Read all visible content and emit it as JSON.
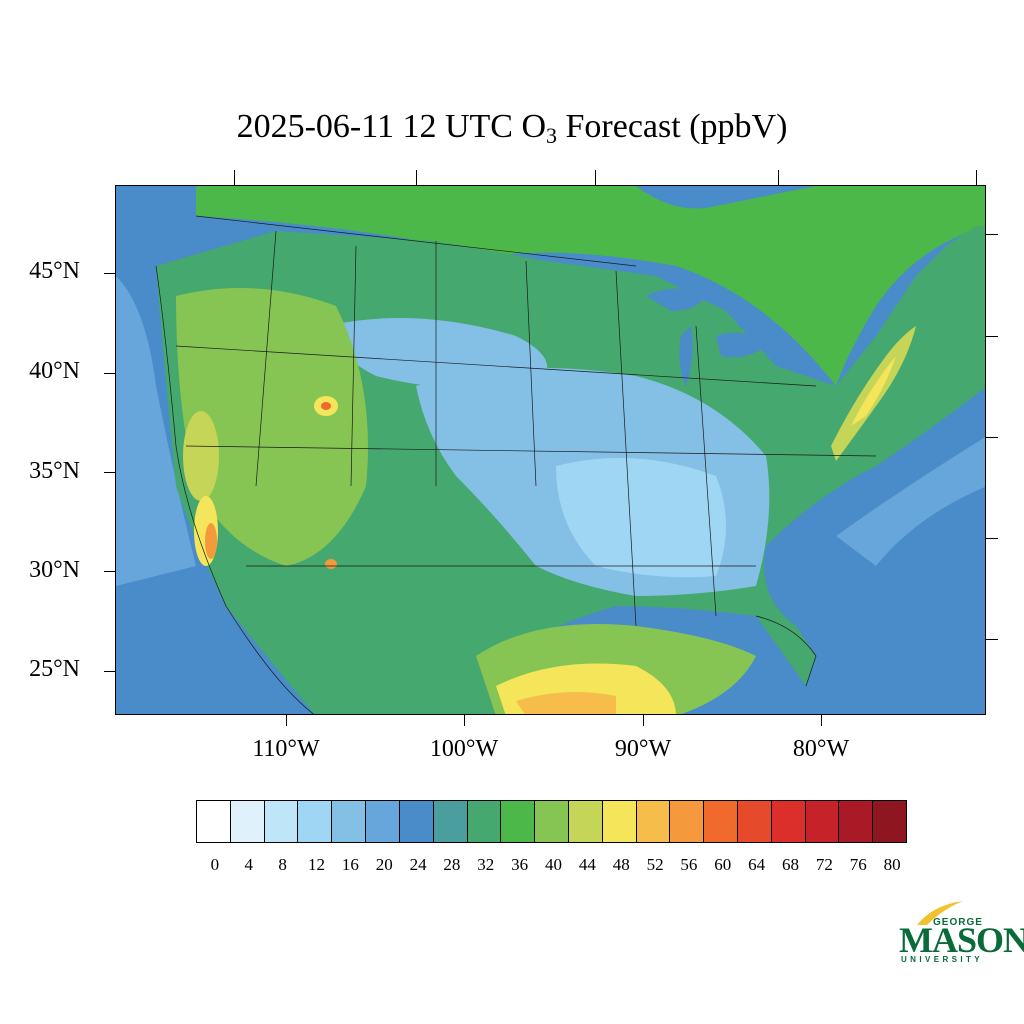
{
  "title": {
    "prefix": "2025-06-11 12 UTC O",
    "subscript": "3",
    "suffix": " Forecast (ppbV)"
  },
  "map": {
    "region": "Contiguous United States",
    "variable": "O3 forecast",
    "units": "ppbV",
    "lat_labels": [
      "45°N",
      "40°N",
      "35°N",
      "30°N",
      "25°N"
    ],
    "lon_labels": [
      "110°W",
      "100°W",
      "90°W",
      "80°W"
    ]
  },
  "colorbar": {
    "labels": [
      "0",
      "4",
      "8",
      "12",
      "16",
      "20",
      "24",
      "28",
      "32",
      "36",
      "40",
      "44",
      "48",
      "52",
      "56",
      "60",
      "64",
      "68",
      "72",
      "76",
      "80"
    ],
    "colors": [
      "#ffffff",
      "#dff1fb",
      "#bfe5f8",
      "#9fd6f4",
      "#84bfe6",
      "#67a6da",
      "#4a8bc9",
      "#4a9e9e",
      "#45a86e",
      "#4cb84a",
      "#86c553",
      "#c4d558",
      "#f4e55a",
      "#f7bd4a",
      "#f59a3c",
      "#f06a2e",
      "#e54a2b",
      "#da2f2b",
      "#c5222a",
      "#aa1a26",
      "#8e1620"
    ]
  },
  "logo": {
    "line1": "GEORGE",
    "line2": "MASON",
    "line3": "UNIVERSITY",
    "color": "#0a6b3a"
  }
}
